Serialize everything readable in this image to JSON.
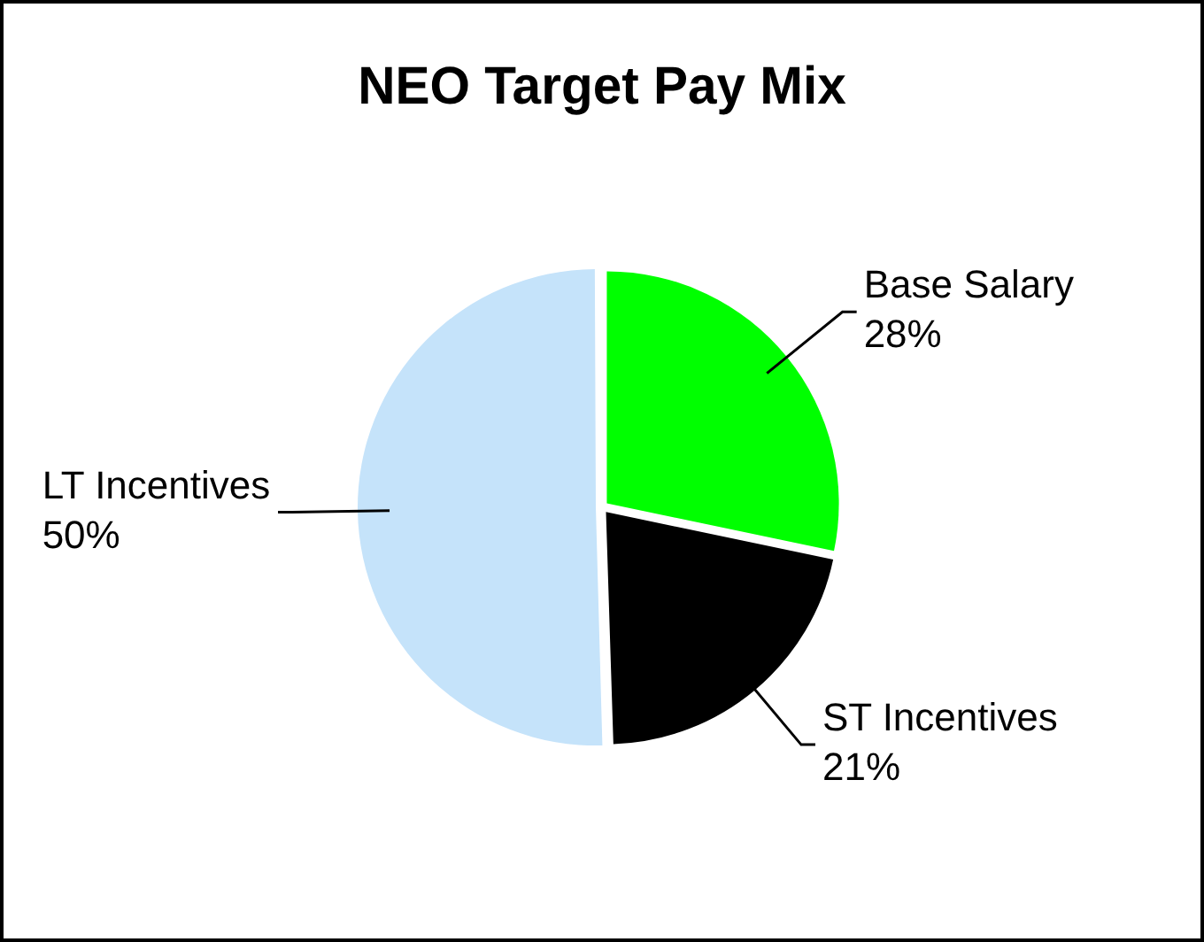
{
  "chart_data": {
    "type": "pie",
    "title": "NEO Target Pay Mix",
    "categories": [
      "Base Salary",
      "ST Incentives",
      "LT Incentives"
    ],
    "values": [
      28,
      21,
      50
    ],
    "colors": [
      "#00ff00",
      "#000000",
      "#c5e3fa"
    ],
    "value_labels": [
      "28%",
      "21%",
      "50%"
    ],
    "legend": false
  }
}
